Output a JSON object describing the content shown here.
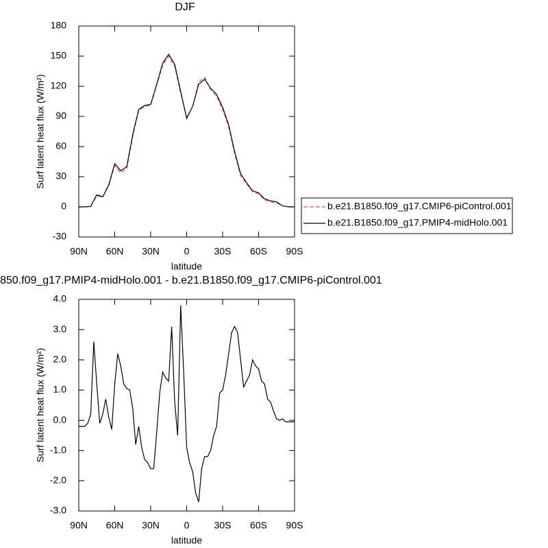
{
  "chart_data": [
    {
      "type": "line",
      "title": "DJF",
      "x_label": "latitude",
      "y_label": "Surf latent heat flux (W/m²)",
      "x": [
        90,
        85,
        80,
        75,
        70,
        65,
        60,
        55,
        50,
        45,
        40,
        35,
        30,
        25,
        20,
        15,
        10,
        5,
        0,
        -5,
        -10,
        -15,
        -20,
        -25,
        -30,
        -35,
        -40,
        -45,
        -50,
        -55,
        -60,
        -65,
        -70,
        -75,
        -80,
        -85,
        -90
      ],
      "series": [
        {
          "name": "b.e21.B1850.f09_g17.CMIP6-piControl.001",
          "color": "#e8474d",
          "line_style": "dashed",
          "values": [
            0,
            0,
            0.5,
            11,
            10,
            21,
            41,
            34,
            38,
            70,
            96,
            100,
            101,
            121,
            141,
            150,
            140,
            113,
            89,
            100,
            124,
            129,
            117,
            110,
            97,
            80,
            53,
            31,
            23,
            15,
            13,
            7,
            5,
            4,
            1,
            0,
            0
          ]
        },
        {
          "name": "b.e21.B1850.f09_g17.PMIP4-midHolo.001",
          "color": "#000000",
          "line_style": "solid",
          "values": [
            0,
            0,
            0.5,
            12,
            10,
            22,
            43,
            36,
            40,
            72,
            97,
            101,
            102,
            122,
            143,
            152,
            142,
            115,
            88,
            100,
            122,
            127,
            118,
            112,
            99,
            82,
            55,
            33,
            24,
            16,
            14,
            8,
            6,
            5,
            1,
            0,
            0
          ]
        }
      ],
      "xlim": [
        90,
        -90
      ],
      "xticks": [
        {
          "value": 90,
          "label": "90N"
        },
        {
          "value": 60,
          "label": "60N"
        },
        {
          "value": 30,
          "label": "30N"
        },
        0,
        {
          "value": -30,
          "label": "30S"
        },
        {
          "value": -60,
          "label": "60S"
        },
        {
          "value": -90,
          "label": "90S"
        }
      ],
      "ylim": [
        -30,
        180
      ],
      "yticks": [
        -30,
        0,
        30,
        60,
        90,
        120,
        150,
        180
      ],
      "legend": "right"
    },
    {
      "type": "line",
      "title": "850.f09_g17.PMIP4-midHolo.001 - b.e21.B1850.f09_g17.CMIP6-piControl.001",
      "x_label": "latitude",
      "y_label": "Surf latent heat flux (W/m²)",
      "x": [
        90,
        87.5,
        85,
        82.5,
        80,
        77.5,
        75,
        72.5,
        70,
        67.5,
        65,
        62.5,
        60,
        57.5,
        55,
        52.5,
        50,
        47.5,
        45,
        42.5,
        40,
        37.5,
        35,
        32.5,
        30,
        27.5,
        25,
        22.5,
        20,
        17.5,
        15,
        12.5,
        10,
        7.5,
        5,
        2.5,
        0,
        -2.5,
        -5,
        -7.5,
        -10,
        -12.5,
        -15,
        -17.5,
        -20,
        -22.5,
        -25,
        -27.5,
        -30,
        -32.5,
        -35,
        -37.5,
        -40,
        -42.5,
        -45,
        -47.5,
        -50,
        -52.5,
        -55,
        -57.5,
        -60,
        -62.5,
        -65,
        -67.5,
        -70,
        -72.5,
        -75,
        -77.5,
        -80,
        -82.5,
        -85,
        -87.5,
        -90
      ],
      "series": [
        {
          "color": "#000000",
          "line_style": "solid",
          "values": [
            -0.2,
            -0.2,
            -0.2,
            -0.1,
            0.2,
            2.6,
            1.2,
            -0.1,
            0.2,
            0.7,
            0.1,
            -0.3,
            1.2,
            2.2,
            1.8,
            1.2,
            1.05,
            1.0,
            0.4,
            -0.8,
            -0.2,
            -0.9,
            -1.3,
            -1.4,
            -1.6,
            -1.6,
            -0.4,
            0.9,
            1.6,
            1.4,
            1.3,
            3.1,
            0.6,
            -0.5,
            3.8,
            1.6,
            -0.9,
            -1.4,
            -1.7,
            -2.4,
            -2.7,
            -1.6,
            -1.2,
            -1.2,
            -1.0,
            -0.5,
            -0.2,
            0.9,
            1.0,
            1.5,
            2.2,
            2.9,
            3.1,
            2.9,
            2.0,
            1.1,
            1.3,
            1.5,
            2.0,
            1.8,
            1.7,
            1.3,
            1.2,
            0.7,
            0.6,
            0.3,
            0.05,
            0.0,
            0.05,
            -0.05,
            -0.05,
            -0.05,
            -0.05
          ]
        }
      ],
      "xlim": [
        90,
        -90
      ],
      "xticks": [
        {
          "value": 90,
          "label": "90N"
        },
        {
          "value": 60,
          "label": "60N"
        },
        {
          "value": 30,
          "label": "30N"
        },
        0,
        {
          "value": -30,
          "label": "30S"
        },
        {
          "value": -60,
          "label": "60S"
        },
        {
          "value": -90,
          "label": "90S"
        }
      ],
      "ylim": [
        -3,
        4
      ],
      "yticks": [
        {
          "value": -3,
          "label": "-3.0"
        },
        {
          "value": -2,
          "label": "-2.0"
        },
        {
          "value": -1,
          "label": "-1.0"
        },
        {
          "value": 0,
          "label": "0.0"
        },
        {
          "value": 1,
          "label": "1.0"
        },
        {
          "value": 2,
          "label": "2.0"
        },
        {
          "value": 3,
          "label": "3.0"
        },
        {
          "value": 4,
          "label": "4.0"
        }
      ]
    }
  ]
}
